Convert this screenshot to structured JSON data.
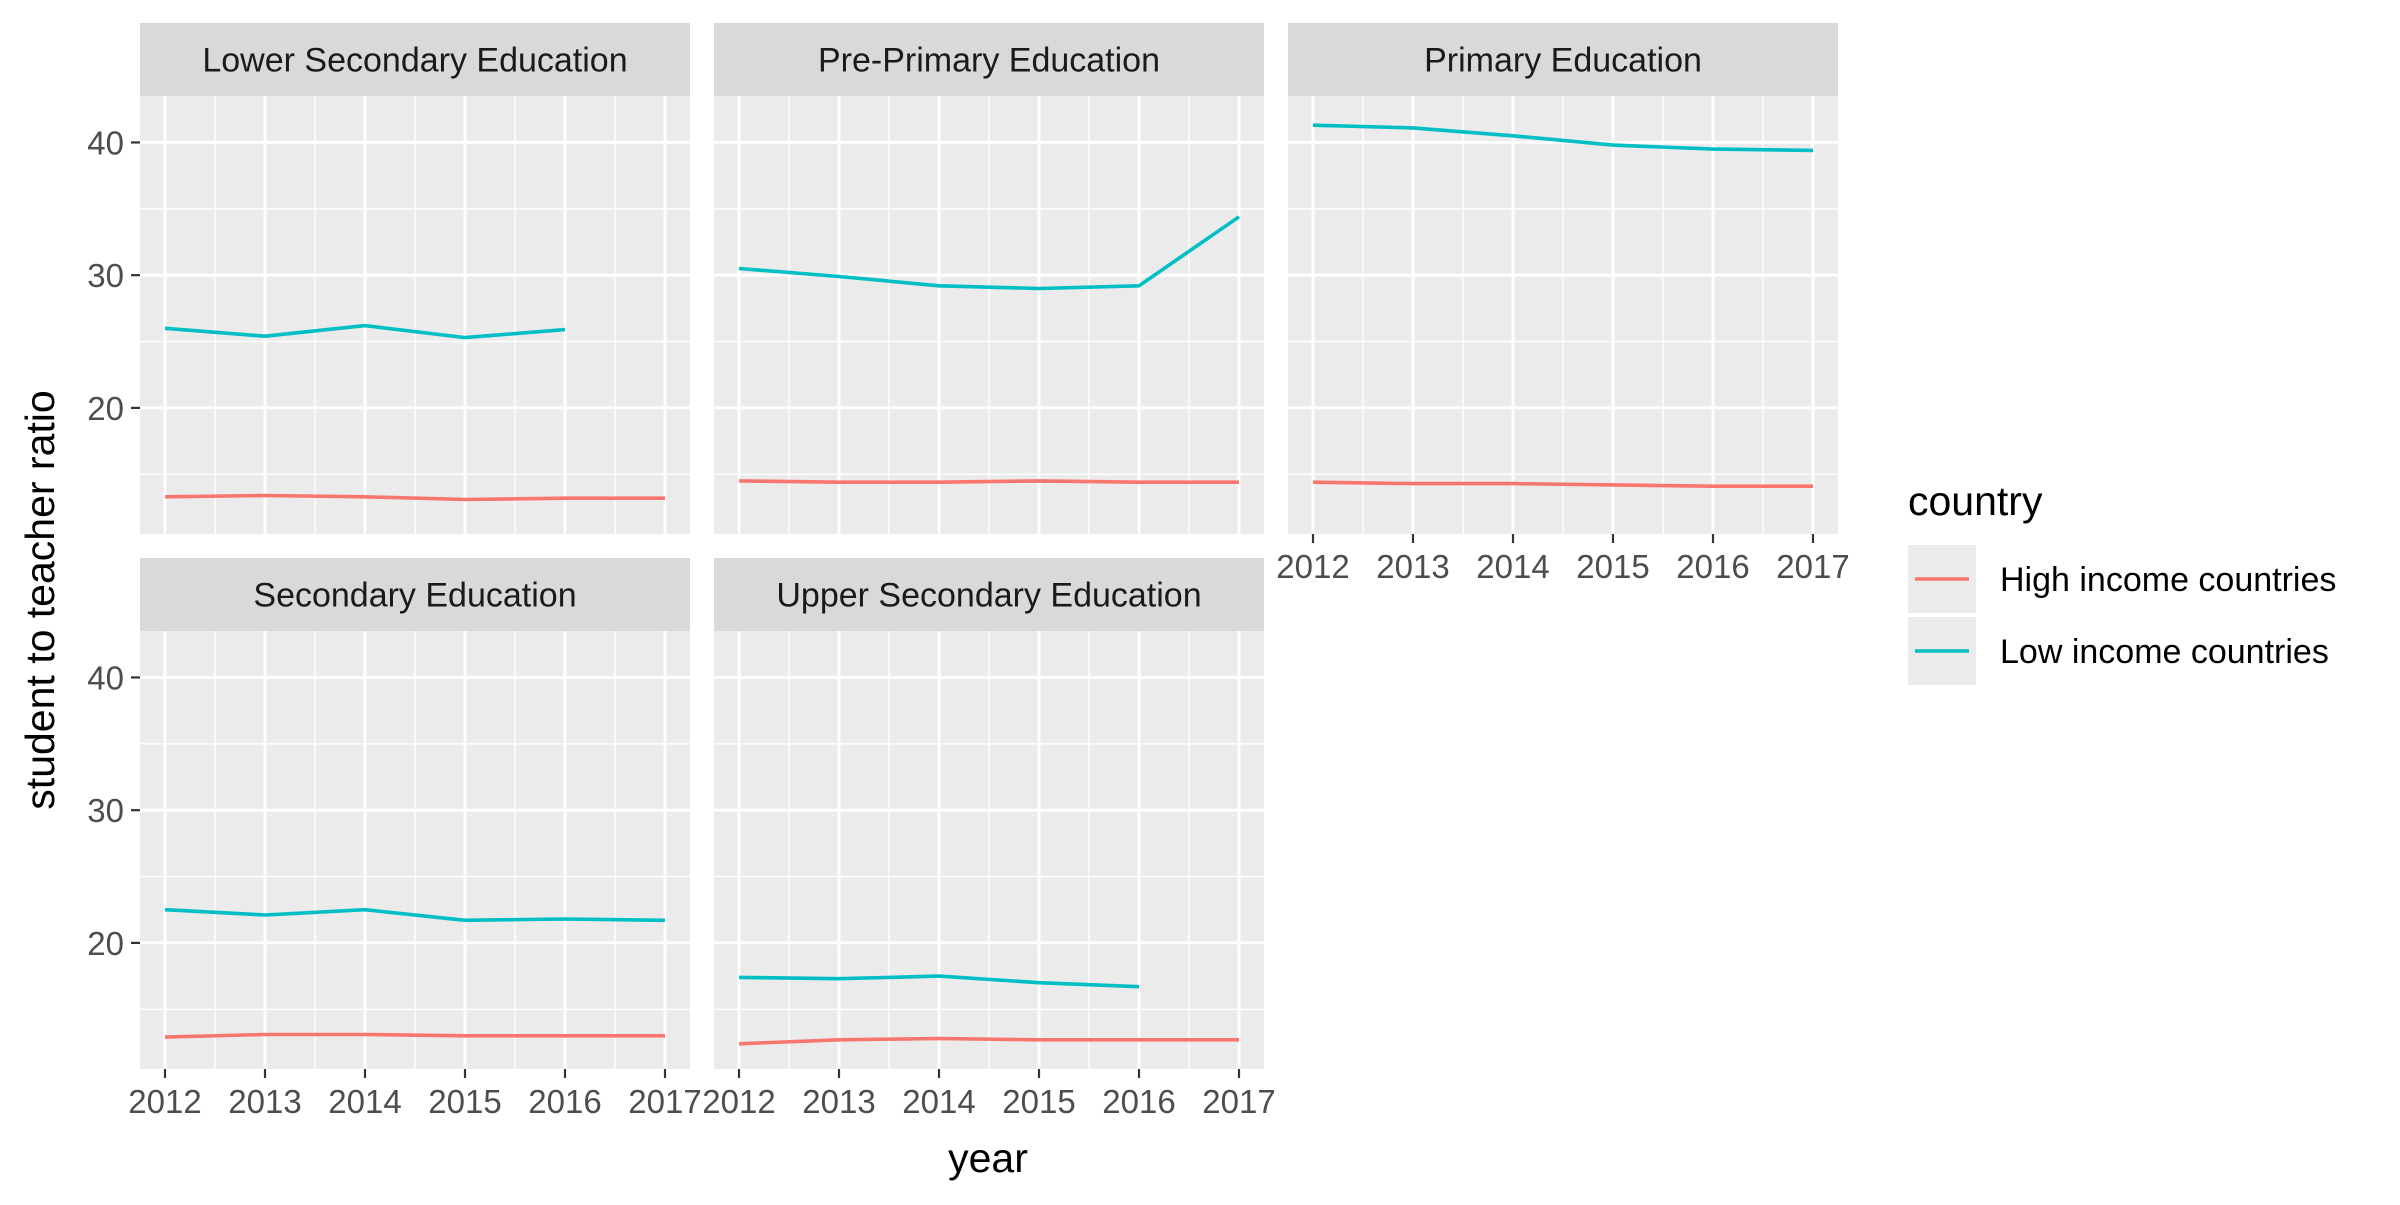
{
  "chart_data": {
    "type": "line",
    "xlabel": "year",
    "ylabel": "student to teacher ratio",
    "x": [
      2012,
      2013,
      2014,
      2015,
      2016,
      2017
    ],
    "x_ticks": [
      "2012",
      "2013",
      "2014",
      "2015",
      "2016",
      "2017"
    ],
    "y_ticks": [
      "20",
      "30",
      "40"
    ],
    "ylim": [
      10.5,
      43.5
    ],
    "xlim": [
      2011.75,
      2017.25
    ],
    "grid": true,
    "legend": {
      "title": "country",
      "placement": "right",
      "entries": [
        {
          "label": "High income countries",
          "color": "#F8766D"
        },
        {
          "label": "Low income countries",
          "color": "#00BFC4"
        }
      ]
    },
    "panels": [
      {
        "title": "Lower Secondary Education",
        "series": [
          {
            "name": "High income countries",
            "values": [
              13.3,
              13.4,
              13.3,
              13.1,
              13.2,
              13.2
            ]
          },
          {
            "name": "Low income countries",
            "values": [
              26.0,
              25.4,
              26.2,
              25.3,
              25.9,
              null
            ]
          }
        ]
      },
      {
        "title": "Pre-Primary Education",
        "series": [
          {
            "name": "High income countries",
            "values": [
              14.5,
              14.4,
              14.4,
              14.5,
              14.4,
              14.4
            ]
          },
          {
            "name": "Low income countries",
            "values": [
              30.5,
              29.9,
              29.2,
              29.0,
              29.2,
              34.4
            ]
          }
        ]
      },
      {
        "title": "Primary Education",
        "series": [
          {
            "name": "High income countries",
            "values": [
              14.4,
              14.3,
              14.3,
              14.2,
              14.1,
              14.1
            ]
          },
          {
            "name": "Low income countries",
            "values": [
              41.3,
              41.1,
              40.5,
              39.8,
              39.5,
              39.4
            ]
          }
        ]
      },
      {
        "title": "Secondary Education",
        "series": [
          {
            "name": "High income countries",
            "values": [
              12.9,
              13.1,
              13.1,
              13.0,
              13.0,
              13.0
            ]
          },
          {
            "name": "Low income countries",
            "values": [
              22.5,
              22.1,
              22.5,
              21.7,
              21.8,
              21.7
            ]
          }
        ]
      },
      {
        "title": "Upper Secondary Education",
        "series": [
          {
            "name": "High income countries",
            "values": [
              12.4,
              12.7,
              12.8,
              12.7,
              12.7,
              12.7
            ]
          },
          {
            "name": "Low income countries",
            "values": [
              17.4,
              17.3,
              17.5,
              17.0,
              16.7,
              null
            ]
          }
        ]
      }
    ]
  }
}
